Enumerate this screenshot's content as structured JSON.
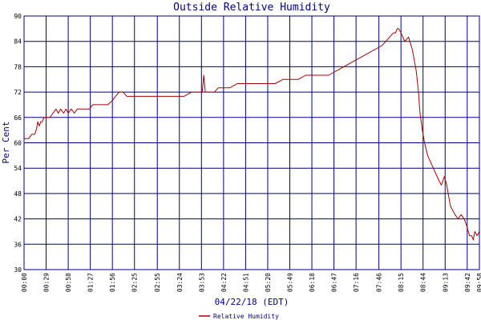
{
  "chart_data": {
    "type": "line",
    "title": "Outside Relative Humidity",
    "xlabel": "04/22/18 (EDT)",
    "ylabel": "Per Cent",
    "ylim": [
      30,
      90
    ],
    "yticks": [
      30,
      36,
      42,
      48,
      54,
      60,
      66,
      72,
      78,
      84,
      90
    ],
    "x_range_minutes": [
      0,
      598
    ],
    "xtick_labels": [
      "00:00",
      "00:29",
      "00:58",
      "01:27",
      "01:56",
      "02:25",
      "02:55",
      "03:24",
      "03:53",
      "04:22",
      "04:51",
      "05:20",
      "05:49",
      "06:18",
      "06:47",
      "07:16",
      "07:46",
      "08:15",
      "08:44",
      "09:13",
      "09:42",
      "09:58"
    ],
    "xtick_minutes": [
      0,
      29,
      58,
      87,
      116,
      145,
      175,
      204,
      233,
      262,
      291,
      320,
      349,
      378,
      407,
      436,
      466,
      495,
      524,
      553,
      582,
      598
    ],
    "grid": true,
    "legend_position": "bottom",
    "colors": {
      "series": "#aa0000",
      "grid": "#000080",
      "text": "#000080"
    },
    "series": [
      {
        "name": "Relative Humidity",
        "x": [
          0,
          6,
          10,
          14,
          16,
          18,
          20,
          22,
          24,
          26,
          28,
          30,
          34,
          38,
          42,
          45,
          48,
          52,
          55,
          58,
          62,
          66,
          70,
          74,
          80,
          86,
          90,
          100,
          110,
          116,
          120,
          125,
          130,
          135,
          140,
          150,
          160,
          170,
          180,
          190,
          200,
          210,
          220,
          230,
          232,
          234,
          236,
          238,
          240,
          245,
          250,
          255,
          260,
          265,
          270,
          280,
          290,
          300,
          310,
          320,
          330,
          340,
          350,
          360,
          370,
          380,
          390,
          400,
          410,
          420,
          430,
          440,
          450,
          460,
          470,
          475,
          480,
          485,
          488,
          490,
          492,
          495,
          500,
          505,
          510,
          515,
          518,
          520,
          523,
          526,
          530,
          535,
          540,
          545,
          548,
          550,
          552,
          555,
          558,
          560,
          563,
          566,
          570,
          574,
          578,
          582,
          585,
          588,
          590,
          592,
          595,
          598
        ],
        "y": [
          61,
          61,
          62,
          62,
          63,
          65,
          64,
          65,
          65,
          66,
          66,
          66,
          66,
          67,
          68,
          67,
          68,
          67,
          68,
          67,
          68,
          67,
          68,
          68,
          68,
          68,
          69,
          69,
          69,
          70,
          71,
          72,
          72,
          71,
          71,
          71,
          71,
          71,
          71,
          71,
          71,
          71,
          72,
          72,
          72,
          72,
          76,
          72,
          72,
          72,
          72,
          73,
          73,
          73,
          73,
          74,
          74,
          74,
          74,
          74,
          74,
          75,
          75,
          75,
          76,
          76,
          76,
          76,
          77,
          78,
          79,
          80,
          81,
          82,
          83,
          84,
          85,
          86,
          86,
          87,
          87,
          86,
          84,
          85,
          82,
          77,
          72,
          67,
          63,
          60,
          57,
          55,
          53,
          51,
          50,
          51,
          52,
          50,
          47,
          45,
          44,
          43,
          42,
          43,
          42,
          40,
          38,
          38,
          37,
          39,
          38,
          39
        ]
      }
    ]
  }
}
